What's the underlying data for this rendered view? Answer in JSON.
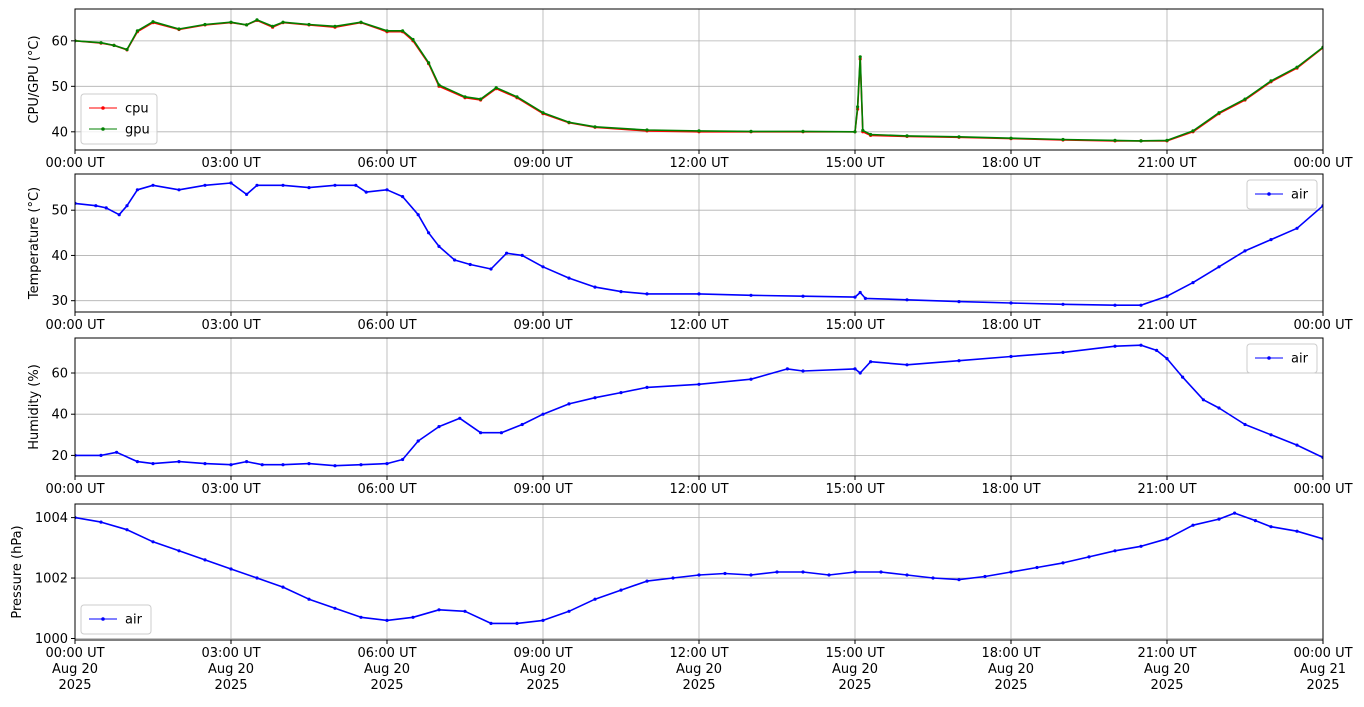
{
  "chart_data": [
    {
      "type": "line",
      "ylabel": "CPU/GPU (°C)",
      "xlabel": "",
      "xlim": [
        "00:00 UT",
        "00:00 UT"
      ],
      "ylim": [
        36,
        67
      ],
      "yticks": [
        "40",
        "50",
        "60"
      ],
      "xtick_labels": [
        "00:00 UT",
        "03:00 UT",
        "06:00 UT",
        "09:00 UT",
        "12:00 UT",
        "15:00 UT",
        "18:00 UT",
        "21:00 UT",
        "00:00 UT"
      ],
      "grid": true,
      "legend_position": "bottom-left",
      "x_hours": [
        0,
        0.5,
        0.75,
        1,
        1.2,
        1.5,
        2,
        2.5,
        3,
        3.3,
        3.5,
        3.8,
        4,
        4.5,
        5,
        5.5,
        6,
        6.3,
        6.5,
        6.8,
        7,
        7.5,
        7.8,
        8.1,
        8.5,
        9,
        9.5,
        10,
        11,
        12,
        13,
        14,
        15,
        15.05,
        15.1,
        15.15,
        15.3,
        16,
        17,
        18,
        19,
        20,
        20.5,
        21,
        21.5,
        22,
        22.5,
        23,
        23.5,
        24
      ],
      "series": [
        {
          "name": "cpu",
          "color": "#ff0000",
          "values": [
            60,
            59.5,
            59,
            58,
            62,
            64,
            62.5,
            63.5,
            64,
            63.5,
            64.5,
            63,
            64,
            63.5,
            63,
            64,
            62,
            62,
            60,
            55,
            50,
            47.5,
            47,
            49.5,
            47.5,
            44,
            42,
            41,
            40.2,
            40,
            40,
            40,
            40,
            45,
            56,
            40,
            39.2,
            39,
            38.8,
            38.5,
            38.2,
            38,
            38,
            38,
            40,
            44,
            47,
            51,
            54,
            58.5
          ]
        },
        {
          "name": "gpu",
          "color": "#008000",
          "values": [
            60,
            59.6,
            59,
            58.1,
            62.2,
            64.2,
            62.6,
            63.6,
            64.1,
            63.5,
            64.6,
            63.2,
            64.1,
            63.6,
            63.2,
            64.1,
            62.2,
            62.2,
            60.3,
            55.2,
            50.3,
            47.7,
            47.2,
            49.7,
            47.7,
            44.2,
            42.1,
            41.1,
            40.4,
            40.2,
            40.1,
            40.1,
            40,
            45.5,
            56.5,
            40.3,
            39.4,
            39.1,
            38.9,
            38.6,
            38.3,
            38.1,
            38,
            38.1,
            40.2,
            44.2,
            47.2,
            51.2,
            54.2,
            58.6
          ]
        }
      ]
    },
    {
      "type": "line",
      "ylabel": "Temperature (°C)",
      "xlabel": "",
      "ylim": [
        27.5,
        58
      ],
      "yticks": [
        "30",
        "40",
        "50"
      ],
      "xtick_labels": [
        "00:00 UT",
        "03:00 UT",
        "06:00 UT",
        "09:00 UT",
        "12:00 UT",
        "15:00 UT",
        "18:00 UT",
        "21:00 UT",
        "00:00 UT"
      ],
      "grid": true,
      "legend_position": "top-right",
      "x_hours": [
        0,
        0.4,
        0.6,
        0.85,
        1,
        1.2,
        1.5,
        2,
        2.5,
        3,
        3.3,
        3.5,
        4,
        4.5,
        5,
        5.4,
        5.6,
        6,
        6.3,
        6.6,
        6.8,
        7,
        7.3,
        7.6,
        8,
        8.3,
        8.6,
        9,
        9.5,
        10,
        10.5,
        11,
        12,
        13,
        14,
        15,
        15.1,
        15.2,
        16,
        17,
        18,
        19,
        20,
        20.5,
        21,
        21.5,
        22,
        22.5,
        23,
        23.5,
        24
      ],
      "series": [
        {
          "name": "air",
          "color": "#0000ff",
          "values": [
            51.5,
            51,
            50.5,
            49,
            51,
            54.5,
            55.5,
            54.5,
            55.5,
            56,
            53.5,
            55.5,
            55.5,
            55,
            55.5,
            55.5,
            54,
            54.5,
            53,
            49,
            45,
            42,
            39,
            38,
            37,
            40.5,
            40,
            37.5,
            35,
            33,
            32,
            31.5,
            31.5,
            31.2,
            31,
            30.8,
            31.8,
            30.5,
            30.2,
            29.8,
            29.5,
            29.2,
            29,
            29,
            31,
            34,
            37.5,
            41,
            43.5,
            46,
            51
          ]
        }
      ]
    },
    {
      "type": "line",
      "ylabel": "Humidity (%)",
      "xlabel": "",
      "ylim": [
        10,
        77
      ],
      "yticks": [
        "20",
        "40",
        "60"
      ],
      "xtick_labels": [
        "00:00 UT",
        "03:00 UT",
        "06:00 UT",
        "09:00 UT",
        "12:00 UT",
        "15:00 UT",
        "18:00 UT",
        "21:00 UT",
        "00:00 UT"
      ],
      "grid": true,
      "legend_position": "top-right",
      "x_hours": [
        0,
        0.5,
        0.8,
        1.2,
        1.5,
        2,
        2.5,
        3,
        3.3,
        3.6,
        4,
        4.5,
        5,
        5.5,
        6,
        6.3,
        6.6,
        7,
        7.4,
        7.8,
        8.2,
        8.6,
        9,
        9.5,
        10,
        10.5,
        11,
        12,
        13,
        13.7,
        14,
        15,
        15.1,
        15.3,
        16,
        17,
        18,
        19,
        20,
        20.5,
        20.8,
        21,
        21.3,
        21.7,
        22,
        22.5,
        23,
        23.5,
        24
      ],
      "series": [
        {
          "name": "air",
          "color": "#0000ff",
          "values": [
            20,
            20,
            21.5,
            17,
            16,
            17,
            16,
            15.5,
            17,
            15.5,
            15.5,
            16,
            15,
            15.5,
            16,
            18,
            27,
            34,
            38,
            31,
            31,
            35,
            40,
            45,
            48,
            50.5,
            53,
            54.5,
            57,
            62,
            61,
            62,
            60,
            65.5,
            64,
            66,
            68,
            70,
            73,
            73.5,
            71,
            67,
            58,
            47,
            43,
            35,
            30,
            25,
            19
          ]
        }
      ]
    },
    {
      "type": "line",
      "ylabel": "Pressure (hPa)",
      "xlabel": "",
      "ylim": [
        999.95,
        1004.45
      ],
      "yticks": [
        "1000",
        "1002",
        "1004"
      ],
      "xtick_labels": [
        "00:00 UT",
        "03:00 UT",
        "06:00 UT",
        "09:00 UT",
        "12:00 UT",
        "15:00 UT",
        "18:00 UT",
        "21:00 UT",
        "00:00 UT"
      ],
      "xtick_dates": [
        "Aug 20",
        "Aug 20",
        "Aug 20",
        "Aug 20",
        "Aug 20",
        "Aug 20",
        "Aug 20",
        "Aug 20",
        "Aug 21"
      ],
      "xtick_years": [
        "2025",
        "2025",
        "2025",
        "2025",
        "2025",
        "2025",
        "2025",
        "2025",
        "2025"
      ],
      "grid": true,
      "legend_position": "bottom-left",
      "x_hours": [
        0,
        0.5,
        1,
        1.5,
        2,
        2.5,
        3,
        3.5,
        4,
        4.5,
        5,
        5.5,
        6,
        6.5,
        7,
        7.5,
        8,
        8.5,
        9,
        9.5,
        10,
        10.5,
        11,
        11.5,
        12,
        12.5,
        13,
        13.5,
        14,
        14.5,
        15,
        15.5,
        16,
        16.5,
        17,
        17.5,
        18,
        18.5,
        19,
        19.5,
        20,
        20.5,
        21,
        21.5,
        22,
        22.3,
        22.7,
        23,
        23.5,
        24
      ],
      "series": [
        {
          "name": "air",
          "color": "#0000ff",
          "values": [
            1004,
            1003.85,
            1003.6,
            1003.2,
            1002.9,
            1002.6,
            1002.3,
            1002,
            1001.7,
            1001.3,
            1001,
            1000.7,
            1000.6,
            1000.7,
            1000.95,
            1000.9,
            1000.5,
            1000.5,
            1000.6,
            1000.9,
            1001.3,
            1001.6,
            1001.9,
            1002,
            1002.1,
            1002.15,
            1002.1,
            1002.2,
            1002.2,
            1002.1,
            1002.2,
            1002.2,
            1002.1,
            1002,
            1001.95,
            1002.05,
            1002.2,
            1002.35,
            1002.5,
            1002.7,
            1002.9,
            1003.05,
            1003.3,
            1003.75,
            1003.95,
            1004.15,
            1003.9,
            1003.7,
            1003.55,
            1003.3
          ]
        }
      ]
    }
  ]
}
